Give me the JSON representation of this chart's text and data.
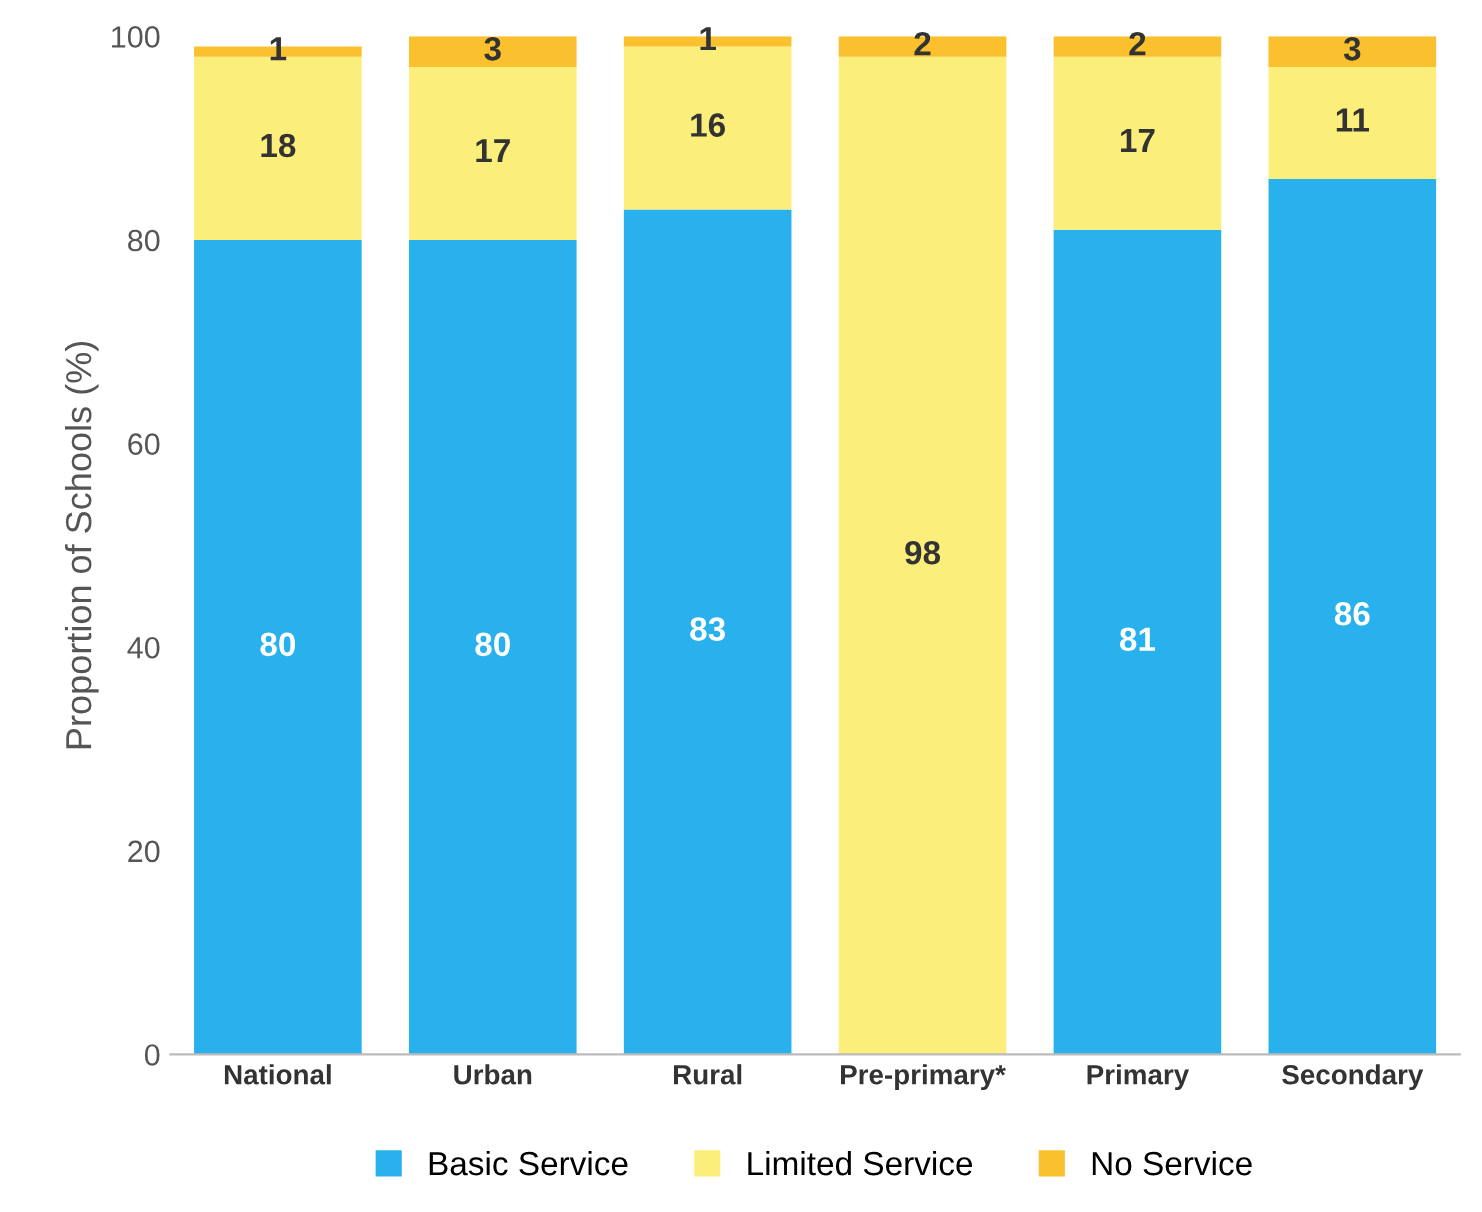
{
  "chart_data": {
    "type": "bar",
    "stacked": true,
    "ylabel": "Proportion of Schools (%)",
    "categories": [
      "National",
      "Urban",
      "Rural",
      "Pre-primary*",
      "Primary",
      "Secondary"
    ],
    "series": [
      {
        "name": "Basic Service",
        "color": "#29b1ee",
        "values": [
          80,
          80,
          83,
          0,
          81,
          86
        ],
        "value_labels": [
          "80",
          "80",
          "83",
          null,
          "81",
          "86"
        ]
      },
      {
        "name": "Limited Service",
        "color": "#fcee7a",
        "values": [
          18,
          17,
          16,
          98,
          17,
          11
        ],
        "value_labels": [
          "18",
          "17",
          "16",
          "98",
          "17",
          "11"
        ]
      },
      {
        "name": "No Service",
        "color": "#fbc02d",
        "values": [
          1,
          3,
          1,
          2,
          2,
          3
        ],
        "value_labels": [
          "1",
          "3",
          "1",
          "2",
          "2",
          "3"
        ]
      }
    ],
    "ylim": [
      0,
      100
    ],
    "yticks": [
      0,
      20,
      40,
      60,
      80,
      100
    ],
    "grid": false,
    "legend": "bottom"
  }
}
